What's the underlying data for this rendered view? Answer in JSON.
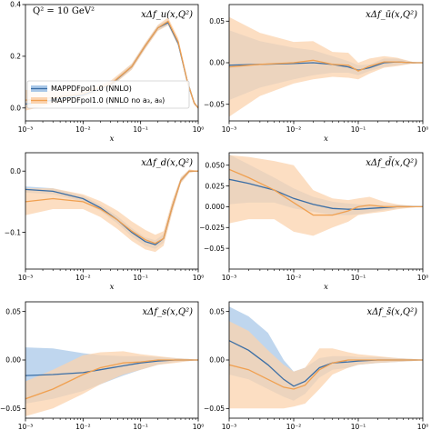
{
  "annotation": "Q² = 10 GeV²",
  "colors": {
    "blue_line": "#3b6ea5",
    "blue_band": "#a9c8e8",
    "orange_line": "#f0a050",
    "orange_band": "#fbd3ae"
  },
  "legend": {
    "placement": "lower-left of first panel",
    "entries": [
      "MAPPDFpol1.0 (NNLO)",
      "MAPPDFpol1.0 (NNLO no a₃, a₈)"
    ]
  },
  "chart_data": [
    {
      "type": "line",
      "title": "xΔf_u(x,Q²)",
      "xlabel": "x",
      "xscale": "log",
      "xlim": [
        0.001,
        1
      ],
      "ylim": [
        -0.05,
        0.4
      ],
      "xticks": [
        "10⁻³",
        "10⁻²",
        "10⁻¹",
        "10⁰"
      ],
      "yticks": [
        {
          "v": 0.0,
          "label": "0.0"
        },
        {
          "v": 0.2,
          "label": "0.2"
        },
        {
          "v": 0.4,
          "label": "0.4"
        }
      ],
      "series": [
        {
          "name": "MAPPDFpol1.0 (NNLO)",
          "x": [
            0.001,
            0.003,
            0.01,
            0.03,
            0.07,
            0.12,
            0.2,
            0.3,
            0.45,
            0.65,
            0.85,
            1.0
          ],
          "y": [
            0.015,
            0.03,
            0.05,
            0.09,
            0.16,
            0.24,
            0.31,
            0.33,
            0.25,
            0.1,
            0.02,
            0.0
          ],
          "lo": [
            0.0,
            0.02,
            0.043,
            0.082,
            0.15,
            0.23,
            0.3,
            0.32,
            0.24,
            0.09,
            0.015,
            0.0
          ],
          "hi": [
            0.03,
            0.04,
            0.057,
            0.098,
            0.17,
            0.25,
            0.32,
            0.34,
            0.26,
            0.11,
            0.025,
            0.0
          ]
        },
        {
          "name": "MAPPDFpol1.0 (NNLO no a₃, a₈)",
          "x": [
            0.001,
            0.003,
            0.01,
            0.03,
            0.07,
            0.12,
            0.2,
            0.3,
            0.45,
            0.65,
            0.85,
            1.0
          ],
          "y": [
            0.03,
            0.04,
            0.055,
            0.092,
            0.16,
            0.24,
            0.31,
            0.335,
            0.255,
            0.1,
            0.02,
            0.0
          ],
          "lo": [
            -0.01,
            0.015,
            0.04,
            0.08,
            0.148,
            0.228,
            0.298,
            0.32,
            0.24,
            0.09,
            0.012,
            0.0
          ],
          "hi": [
            0.07,
            0.065,
            0.07,
            0.105,
            0.172,
            0.252,
            0.322,
            0.35,
            0.27,
            0.11,
            0.028,
            0.0
          ]
        }
      ]
    },
    {
      "type": "line",
      "title": "xΔf_ū(x,Q²)",
      "xlabel": "x",
      "xscale": "log",
      "xlim": [
        0.001,
        1
      ],
      "ylim": [
        -0.07,
        0.07
      ],
      "xticks": [
        "10⁻³",
        "10⁻²",
        "10⁻¹",
        "10⁰"
      ],
      "yticks": [
        {
          "v": -0.05,
          "label": "−0.05"
        },
        {
          "v": 0.0,
          "label": "0.00"
        },
        {
          "v": 0.05,
          "label": "0.05"
        }
      ],
      "series": [
        {
          "name": "MAPPDFpol1.0 (NNLO)",
          "x": [
            0.001,
            0.003,
            0.01,
            0.02,
            0.04,
            0.07,
            0.1,
            0.15,
            0.25,
            0.4,
            0.7,
            1.0
          ],
          "y": [
            -0.003,
            -0.002,
            -0.001,
            0.0,
            -0.002,
            -0.005,
            -0.009,
            -0.006,
            0.0,
            0.001,
            0.0,
            0.0
          ],
          "lo": [
            -0.045,
            -0.03,
            -0.02,
            -0.015,
            -0.012,
            -0.012,
            -0.015,
            -0.01,
            -0.005,
            -0.003,
            -0.001,
            0.0
          ],
          "hi": [
            0.039,
            0.026,
            0.018,
            0.015,
            0.008,
            0.002,
            -0.003,
            -0.002,
            0.005,
            0.005,
            0.001,
            0.0
          ]
        },
        {
          "name": "MAPPDFpol1.0 (NNLO no a₃, a₈)",
          "x": [
            0.001,
            0.003,
            0.01,
            0.02,
            0.04,
            0.07,
            0.1,
            0.15,
            0.25,
            0.4,
            0.7,
            1.0
          ],
          "y": [
            -0.005,
            -0.002,
            0.0,
            0.003,
            -0.002,
            -0.003,
            -0.01,
            -0.004,
            0.001,
            0.001,
            0.0,
            0.0
          ],
          "lo": [
            -0.065,
            -0.04,
            -0.025,
            -0.02,
            -0.017,
            -0.018,
            -0.02,
            -0.013,
            -0.006,
            -0.004,
            -0.001,
            0.0
          ],
          "hi": [
            0.055,
            0.036,
            0.025,
            0.026,
            0.013,
            0.012,
            0.0,
            0.005,
            0.008,
            0.006,
            0.001,
            0.0
          ]
        }
      ]
    },
    {
      "type": "line",
      "title": "xΔf_d(x,Q²)",
      "xlabel": "x",
      "xscale": "log",
      "xlim": [
        0.001,
        1
      ],
      "ylim": [
        -0.16,
        0.03
      ],
      "xticks": [
        "10⁻³",
        "10⁻²",
        "10⁻¹",
        "10⁰"
      ],
      "yticks": [
        {
          "v": -0.1,
          "label": "−0.1"
        },
        {
          "v": 0.0,
          "label": "0.0"
        }
      ],
      "series": [
        {
          "name": "MAPPDFpol1.0 (NNLO)",
          "x": [
            0.001,
            0.003,
            0.01,
            0.02,
            0.04,
            0.07,
            0.12,
            0.18,
            0.25,
            0.35,
            0.5,
            0.7,
            1.0
          ],
          "y": [
            -0.03,
            -0.033,
            -0.045,
            -0.06,
            -0.08,
            -0.1,
            -0.115,
            -0.12,
            -0.11,
            -0.06,
            -0.015,
            0.0,
            0.0
          ],
          "lo": [
            -0.035,
            -0.038,
            -0.05,
            -0.065,
            -0.086,
            -0.107,
            -0.122,
            -0.127,
            -0.117,
            -0.066,
            -0.019,
            -0.002,
            0.0
          ],
          "hi": [
            -0.025,
            -0.028,
            -0.04,
            -0.055,
            -0.074,
            -0.093,
            -0.108,
            -0.113,
            -0.103,
            -0.054,
            -0.011,
            0.002,
            0.0
          ]
        },
        {
          "name": "MAPPDFpol1.0 (NNLO no a₃, a₈)",
          "x": [
            0.001,
            0.003,
            0.01,
            0.02,
            0.04,
            0.07,
            0.12,
            0.18,
            0.25,
            0.35,
            0.5,
            0.7,
            1.0
          ],
          "y": [
            -0.05,
            -0.045,
            -0.05,
            -0.062,
            -0.08,
            -0.098,
            -0.112,
            -0.118,
            -0.11,
            -0.06,
            -0.015,
            0.0,
            0.0
          ],
          "lo": [
            -0.072,
            -0.062,
            -0.062,
            -0.075,
            -0.095,
            -0.114,
            -0.128,
            -0.132,
            -0.122,
            -0.07,
            -0.02,
            -0.003,
            0.0
          ],
          "hi": [
            -0.028,
            -0.028,
            -0.038,
            -0.049,
            -0.065,
            -0.082,
            -0.096,
            -0.104,
            -0.098,
            -0.05,
            -0.01,
            0.003,
            0.0
          ]
        }
      ]
    },
    {
      "type": "line",
      "title": "xΔf_d̄(x,Q²)",
      "xlabel": "x",
      "xscale": "log",
      "xlim": [
        0.001,
        1
      ],
      "ylim": [
        -0.075,
        0.065
      ],
      "xticks": [
        "10⁻³",
        "10⁻²",
        "10⁻¹",
        "10⁰"
      ],
      "yticks": [
        {
          "v": -0.05,
          "label": "−0.05"
        },
        {
          "v": -0.025,
          "label": "−0.025"
        },
        {
          "v": 0.0,
          "label": "0.000"
        },
        {
          "v": 0.025,
          "label": "0.025"
        },
        {
          "v": 0.05,
          "label": "0.050"
        }
      ],
      "series": [
        {
          "name": "MAPPDFpol1.0 (NNLO)",
          "x": [
            0.001,
            0.002,
            0.005,
            0.01,
            0.02,
            0.04,
            0.07,
            0.1,
            0.15,
            0.25,
            0.4,
            0.7,
            1.0
          ],
          "y": [
            0.033,
            0.028,
            0.02,
            0.01,
            0.003,
            -0.002,
            -0.003,
            -0.003,
            -0.002,
            -0.001,
            0.0,
            0.0,
            0.0
          ],
          "lo": [
            0.003,
            0.005,
            0.005,
            -0.002,
            -0.006,
            -0.01,
            -0.01,
            -0.009,
            -0.007,
            -0.004,
            -0.002,
            -0.001,
            0.0
          ],
          "hi": [
            0.063,
            0.051,
            0.035,
            0.022,
            0.012,
            0.006,
            0.004,
            0.003,
            0.003,
            0.002,
            0.002,
            0.001,
            0.0
          ]
        },
        {
          "name": "MAPPDFpol1.0 (NNLO no a₃, a₈)",
          "x": [
            0.001,
            0.002,
            0.005,
            0.01,
            0.02,
            0.04,
            0.07,
            0.1,
            0.15,
            0.25,
            0.4,
            0.7,
            1.0
          ],
          "y": [
            0.045,
            0.035,
            0.02,
            0.005,
            -0.01,
            -0.01,
            -0.005,
            0.0,
            0.002,
            0.0,
            0.0,
            0.0,
            0.0
          ],
          "lo": [
            -0.02,
            -0.015,
            -0.015,
            -0.03,
            -0.035,
            -0.025,
            -0.018,
            -0.01,
            -0.008,
            -0.006,
            -0.003,
            -0.001,
            0.0
          ],
          "hi": [
            0.062,
            0.06,
            0.055,
            0.05,
            0.02,
            0.01,
            0.008,
            0.01,
            0.012,
            0.006,
            0.003,
            0.001,
            0.0
          ]
        }
      ]
    },
    {
      "type": "line",
      "title": "xΔf_s(x,Q²)",
      "xlabel": "x",
      "xscale": "log",
      "xlim": [
        0.001,
        1
      ],
      "ylim": [
        -0.06,
        0.06
      ],
      "xticks": [
        "10⁻³",
        "10⁻²",
        "10⁻¹",
        "10⁰"
      ],
      "yticks": [
        {
          "v": -0.05,
          "label": "−0.05"
        },
        {
          "v": 0.0,
          "label": "0.00"
        },
        {
          "v": 0.05,
          "label": "0.05"
        }
      ],
      "series": [
        {
          "name": "MAPPDFpol1.0 (NNLO)",
          "x": [
            0.001,
            0.003,
            0.01,
            0.02,
            0.05,
            0.1,
            0.2,
            0.4,
            0.7,
            1.0
          ],
          "y": [
            -0.016,
            -0.015,
            -0.013,
            -0.01,
            -0.006,
            -0.003,
            -0.001,
            0.0,
            0.0,
            0.0
          ],
          "lo": [
            -0.045,
            -0.04,
            -0.032,
            -0.025,
            -0.016,
            -0.01,
            -0.005,
            -0.002,
            -0.001,
            0.0
          ],
          "hi": [
            0.013,
            0.012,
            0.007,
            0.005,
            0.004,
            0.004,
            0.003,
            0.002,
            0.001,
            0.0
          ]
        },
        {
          "name": "MAPPDFpol1.0 (NNLO no a₃, a₈)",
          "x": [
            0.001,
            0.003,
            0.01,
            0.02,
            0.05,
            0.1,
            0.2,
            0.4,
            0.7,
            1.0
          ],
          "y": [
            -0.04,
            -0.03,
            -0.015,
            -0.008,
            -0.003,
            -0.002,
            0.0,
            0.0,
            0.0,
            0.0
          ],
          "lo": [
            -0.058,
            -0.05,
            -0.035,
            -0.025,
            -0.015,
            -0.01,
            -0.005,
            -0.003,
            -0.001,
            0.0
          ],
          "hi": [
            -0.022,
            -0.01,
            0.005,
            0.008,
            0.009,
            0.006,
            0.004,
            0.002,
            0.001,
            0.0
          ]
        }
      ]
    },
    {
      "type": "line",
      "title": "xΔf_s̄(x,Q²)",
      "xlabel": "x",
      "xscale": "log",
      "xlim": [
        0.001,
        1
      ],
      "ylim": [
        -0.06,
        0.06
      ],
      "xticks": [
        "10⁻³",
        "10⁻²",
        "10⁻¹",
        "10⁰"
      ],
      "yticks": [
        {
          "v": -0.05,
          "label": "−0.05"
        },
        {
          "v": 0.0,
          "label": "0.00"
        },
        {
          "v": 0.05,
          "label": "0.05"
        }
      ],
      "series": [
        {
          "name": "MAPPDFpol1.0 (NNLO)",
          "x": [
            0.001,
            0.002,
            0.004,
            0.007,
            0.01,
            0.015,
            0.025,
            0.04,
            0.07,
            0.1,
            0.2,
            0.4,
            0.7,
            1.0
          ],
          "y": [
            0.02,
            0.01,
            -0.005,
            -0.02,
            -0.027,
            -0.022,
            -0.008,
            -0.003,
            -0.002,
            -0.001,
            0.0,
            0.0,
            0.0,
            0.0
          ],
          "lo": [
            -0.015,
            -0.02,
            -0.03,
            -0.038,
            -0.042,
            -0.035,
            -0.018,
            -0.01,
            -0.008,
            -0.005,
            -0.003,
            -0.002,
            -0.001,
            0.0
          ],
          "hi": [
            0.055,
            0.045,
            0.028,
            0.0,
            -0.012,
            -0.008,
            0.002,
            0.004,
            0.004,
            0.003,
            0.003,
            0.002,
            0.001,
            0.0
          ]
        },
        {
          "name": "MAPPDFpol1.0 (NNLO no a₃, a₈)",
          "x": [
            0.001,
            0.002,
            0.004,
            0.007,
            0.01,
            0.015,
            0.025,
            0.04,
            0.07,
            0.1,
            0.2,
            0.4,
            0.7,
            1.0
          ],
          "y": [
            -0.005,
            -0.01,
            -0.02,
            -0.028,
            -0.03,
            -0.026,
            -0.01,
            -0.003,
            0.0,
            0.0,
            0.0,
            0.0,
            0.0,
            0.0
          ],
          "lo": [
            -0.05,
            -0.05,
            -0.05,
            -0.05,
            -0.048,
            -0.045,
            -0.03,
            -0.015,
            -0.008,
            -0.005,
            -0.003,
            -0.002,
            -0.001,
            0.0
          ],
          "hi": [
            0.04,
            0.03,
            0.01,
            -0.005,
            -0.012,
            -0.008,
            0.012,
            0.012,
            0.008,
            0.006,
            0.004,
            0.002,
            0.001,
            0.0
          ]
        }
      ]
    }
  ]
}
